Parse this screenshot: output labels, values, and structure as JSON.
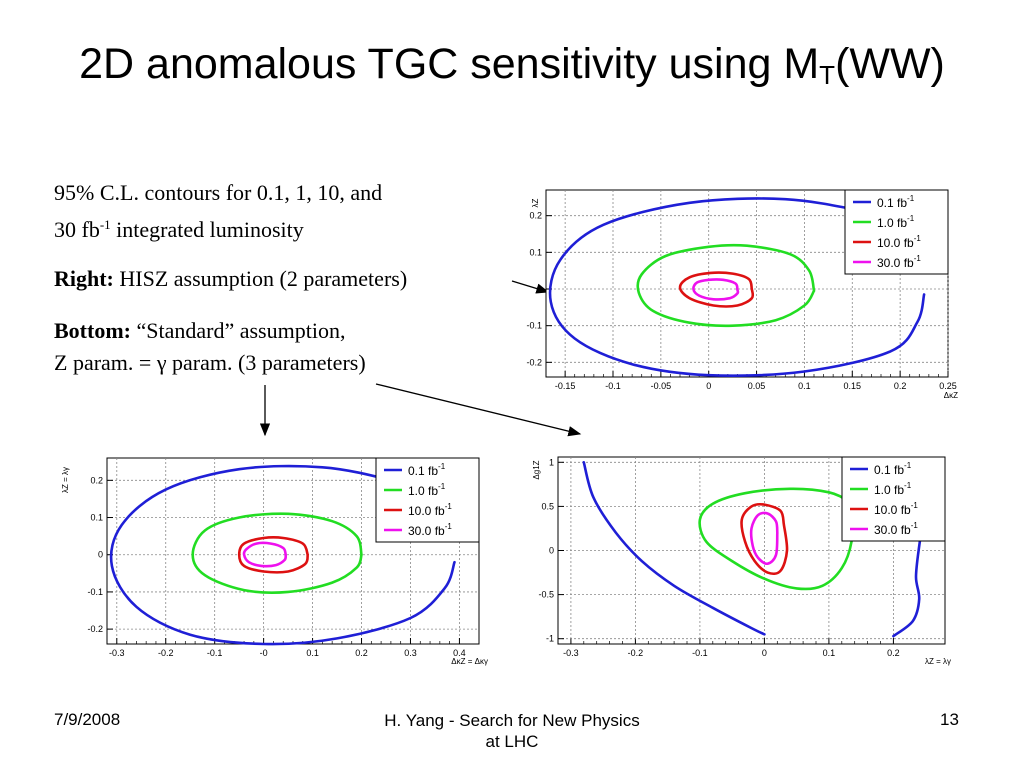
{
  "title": {
    "main": "2D anomalous TGC sensitivity using M",
    "sub": "T",
    "tail": "(WW)"
  },
  "text": {
    "line1": "95% C.L. contours for 0.1, 1, 10, and",
    "line2_pre": "30 fb",
    "line2_sup": "-1",
    "line2_post": " integrated luminosity",
    "right_label": "Right:",
    "right_text": " HISZ assumption (2 parameters)",
    "bottom_label": "Bottom:",
    "bottom_text": " “Standard” assumption,",
    "bottom_line2": "Z param. = γ param. (3 parameters)"
  },
  "footer": {
    "date": "7/9/2008",
    "center_line1": "H. Yang - Search for New Physics",
    "center_line2": "at LHC",
    "page": "13"
  },
  "colors": {
    "blue": "#1f1fd6",
    "green": "#22dd22",
    "red": "#dd1111",
    "magenta": "#ee11ee",
    "grid": "#888888"
  },
  "chart_data": [
    {
      "type": "line",
      "panel": "right",
      "xlabel": "ΔκZ",
      "ylabel": "λZ",
      "xlim": [
        -0.17,
        0.25
      ],
      "ylim": [
        -0.24,
        0.27
      ],
      "xticks": [
        -0.15,
        -0.1,
        -0.05,
        0,
        0.05,
        0.1,
        0.15,
        0.2,
        0.25
      ],
      "xtick_labels": [
        "-0.15",
        "-0.1",
        "-0.05",
        "0",
        "0.05",
        "0.1",
        "0.15",
        "0.2",
        "0.25"
      ],
      "yticks": [
        -0.2,
        -0.1,
        0,
        0.1,
        0.2
      ],
      "ytick_labels": [
        "-0.2",
        "-0.1",
        "0",
        "0.1",
        "0.2"
      ],
      "legend": "top-right",
      "grid": true,
      "series": [
        {
          "name": "0.1 fb-1",
          "color": "#1f1fd6",
          "points": [
            [
              0.225,
              -0.015
            ],
            [
              0.218,
              -0.09
            ],
            [
              0.19,
              -0.17
            ],
            [
              0.1,
              -0.225
            ],
            [
              0.0,
              -0.235
            ],
            [
              -0.08,
              -0.205
            ],
            [
              -0.14,
              -0.135
            ],
            [
              -0.165,
              -0.035
            ],
            [
              -0.155,
              0.08
            ],
            [
              -0.11,
              0.175
            ],
            [
              -0.02,
              0.235
            ],
            [
              0.08,
              0.245
            ],
            [
              0.165,
              0.21
            ],
            [
              0.2,
              0.185
            ]
          ]
        },
        {
          "name": "1.0 fb-1",
          "color": "#22dd22",
          "points": [
            [
              0.11,
              -0.005
            ],
            [
              0.105,
              0.05
            ],
            [
              0.085,
              0.095
            ],
            [
              0.04,
              0.118
            ],
            [
              0.0,
              0.115
            ],
            [
              -0.045,
              0.09
            ],
            [
              -0.07,
              0.04
            ],
            [
              -0.073,
              -0.01
            ],
            [
              -0.058,
              -0.06
            ],
            [
              -0.02,
              -0.092
            ],
            [
              0.025,
              -0.1
            ],
            [
              0.07,
              -0.085
            ],
            [
              0.1,
              -0.045
            ],
            [
              0.11,
              -0.005
            ]
          ]
        },
        {
          "name": "10.0 fb-1",
          "color": "#dd1111",
          "points": [
            [
              0.045,
              0.0
            ],
            [
              0.042,
              0.027
            ],
            [
              0.025,
              0.042
            ],
            [
              0.002,
              0.044
            ],
            [
              -0.02,
              0.032
            ],
            [
              -0.03,
              0.005
            ],
            [
              -0.02,
              -0.025
            ],
            [
              0.005,
              -0.045
            ],
            [
              0.03,
              -0.045
            ],
            [
              0.045,
              -0.025
            ],
            [
              0.045,
              0.0
            ]
          ]
        },
        {
          "name": "30.0 fb-1",
          "color": "#ee11ee",
          "points": [
            [
              0.03,
              -0.002
            ],
            [
              0.028,
              0.015
            ],
            [
              0.015,
              0.025
            ],
            [
              0.0,
              0.025
            ],
            [
              -0.012,
              0.018
            ],
            [
              -0.016,
              0.0
            ],
            [
              -0.01,
              -0.018
            ],
            [
              0.005,
              -0.028
            ],
            [
              0.022,
              -0.025
            ],
            [
              0.03,
              -0.012
            ],
            [
              0.03,
              -0.002
            ]
          ]
        }
      ]
    },
    {
      "type": "line",
      "panel": "bottom-left",
      "xlabel": "ΔκZ = Δκγ",
      "ylabel": "λZ = λγ",
      "xlim": [
        -0.32,
        0.44
      ],
      "ylim": [
        -0.24,
        0.26
      ],
      "xticks": [
        -0.3,
        -0.2,
        -0.1,
        0,
        0.1,
        0.2,
        0.3,
        0.4
      ],
      "xtick_labels": [
        "-0.3",
        "-0.2",
        "-0.1",
        "-0",
        "0.1",
        "0.2",
        "0.3",
        "0.4"
      ],
      "yticks": [
        -0.2,
        -0.1,
        0,
        0.1,
        0.2
      ],
      "ytick_labels": [
        "-0.2",
        "-0.1",
        "0",
        "0.1",
        "0.2"
      ],
      "legend": "top-right",
      "grid": true,
      "series": [
        {
          "name": "0.1 fb-1",
          "color": "#1f1fd6",
          "points": [
            [
              0.39,
              -0.02
            ],
            [
              0.37,
              -0.09
            ],
            [
              0.3,
              -0.17
            ],
            [
              0.15,
              -0.225
            ],
            [
              0.0,
              -0.24
            ],
            [
              -0.15,
              -0.215
            ],
            [
              -0.26,
              -0.14
            ],
            [
              -0.31,
              -0.03
            ],
            [
              -0.29,
              0.08
            ],
            [
              -0.2,
              0.175
            ],
            [
              -0.05,
              0.23
            ],
            [
              0.12,
              0.235
            ],
            [
              0.26,
              0.2
            ],
            [
              0.34,
              0.16
            ]
          ]
        },
        {
          "name": "1.0 fb-1",
          "color": "#22dd22",
          "points": [
            [
              0.2,
              0.0
            ],
            [
              0.19,
              0.05
            ],
            [
              0.14,
              0.09
            ],
            [
              0.05,
              0.11
            ],
            [
              -0.05,
              0.1
            ],
            [
              -0.12,
              0.065
            ],
            [
              -0.145,
              0.0
            ],
            [
              -0.12,
              -0.055
            ],
            [
              -0.04,
              -0.095
            ],
            [
              0.05,
              -0.1
            ],
            [
              0.14,
              -0.075
            ],
            [
              0.19,
              -0.035
            ],
            [
              0.2,
              0.0
            ]
          ]
        },
        {
          "name": "10.0 fb-1",
          "color": "#dd1111",
          "points": [
            [
              0.09,
              0.0
            ],
            [
              0.08,
              0.03
            ],
            [
              0.04,
              0.045
            ],
            [
              0.0,
              0.045
            ],
            [
              -0.04,
              0.03
            ],
            [
              -0.05,
              0.0
            ],
            [
              -0.04,
              -0.03
            ],
            [
              0.0,
              -0.045
            ],
            [
              0.05,
              -0.045
            ],
            [
              0.085,
              -0.025
            ],
            [
              0.09,
              0.0
            ]
          ]
        },
        {
          "name": "30.0 fb-1",
          "color": "#ee11ee",
          "points": [
            [
              0.045,
              0.0
            ],
            [
              0.04,
              0.018
            ],
            [
              0.015,
              0.03
            ],
            [
              -0.015,
              0.03
            ],
            [
              -0.035,
              0.015
            ],
            [
              -0.04,
              0.0
            ],
            [
              -0.03,
              -0.02
            ],
            [
              -0.005,
              -0.03
            ],
            [
              0.025,
              -0.028
            ],
            [
              0.043,
              -0.014
            ],
            [
              0.045,
              0.0
            ]
          ]
        }
      ]
    },
    {
      "type": "line",
      "panel": "bottom-right",
      "xlabel": "λZ = λγ",
      "ylabel": "Δg1Z",
      "xlim": [
        -0.32,
        0.28
      ],
      "ylim": [
        -1.06,
        1.06
      ],
      "xticks": [
        -0.3,
        -0.2,
        -0.1,
        0,
        0.1,
        0.2
      ],
      "xtick_labels": [
        "-0.3",
        "-0.2",
        "-0.1",
        "0",
        "0.1",
        "0.2"
      ],
      "yticks": [
        -1,
        -0.5,
        0,
        0.5,
        1
      ],
      "ytick_labels": [
        "-1",
        "-0.5",
        "0",
        "0.5",
        "1"
      ],
      "legend": "top-right",
      "grid": true,
      "series": [
        {
          "name": "0.1 fb-1",
          "color": "#1f1fd6",
          "points": [
            [
              -0.28,
              1.0
            ],
            [
              -0.265,
              0.6
            ],
            [
              -0.23,
              0.2
            ],
            [
              -0.19,
              -0.12
            ],
            [
              -0.14,
              -0.4
            ],
            [
              -0.08,
              -0.65
            ],
            [
              -0.02,
              -0.88
            ],
            [
              0.0,
              -0.95
            ]
          ]
        },
        {
          "name": "",
          "color": "#1f1fd6",
          "points": [
            [
              0.2,
              -0.97
            ],
            [
              0.23,
              -0.8
            ],
            [
              0.24,
              -0.55
            ],
            [
              0.235,
              -0.3
            ],
            [
              0.24,
              0.05
            ],
            [
              0.243,
              0.18
            ]
          ]
        },
        {
          "name": "1.0 fb-1",
          "color": "#22dd22",
          "points": [
            [
              0.135,
              0.42
            ],
            [
              0.13,
              0.55
            ],
            [
              0.1,
              0.66
            ],
            [
              0.04,
              0.7
            ],
            [
              -0.03,
              0.65
            ],
            [
              -0.08,
              0.53
            ],
            [
              -0.1,
              0.35
            ],
            [
              -0.09,
              0.1
            ],
            [
              -0.05,
              -0.12
            ],
            [
              0.0,
              -0.32
            ],
            [
              0.05,
              -0.43
            ],
            [
              0.09,
              -0.4
            ],
            [
              0.12,
              -0.2
            ],
            [
              0.135,
              0.1
            ],
            [
              0.135,
              0.42
            ]
          ]
        },
        {
          "name": "10.0 fb-1",
          "color": "#dd1111",
          "points": [
            [
              0.03,
              0.3
            ],
            [
              0.025,
              0.45
            ],
            [
              0.0,
              0.52
            ],
            [
              -0.02,
              0.5
            ],
            [
              -0.035,
              0.35
            ],
            [
              -0.03,
              0.1
            ],
            [
              -0.015,
              -0.12
            ],
            [
              0.005,
              -0.25
            ],
            [
              0.025,
              -0.23
            ],
            [
              0.035,
              0.0
            ],
            [
              0.03,
              0.3
            ]
          ]
        },
        {
          "name": "30.0 fb-1",
          "color": "#ee11ee",
          "points": [
            [
              0.02,
              0.2
            ],
            [
              0.018,
              0.33
            ],
            [
              0.005,
              0.42
            ],
            [
              -0.01,
              0.4
            ],
            [
              -0.02,
              0.25
            ],
            [
              -0.018,
              0.05
            ],
            [
              -0.01,
              -0.08
            ],
            [
              0.005,
              -0.15
            ],
            [
              0.018,
              -0.05
            ],
            [
              0.02,
              0.2
            ]
          ]
        }
      ]
    }
  ]
}
